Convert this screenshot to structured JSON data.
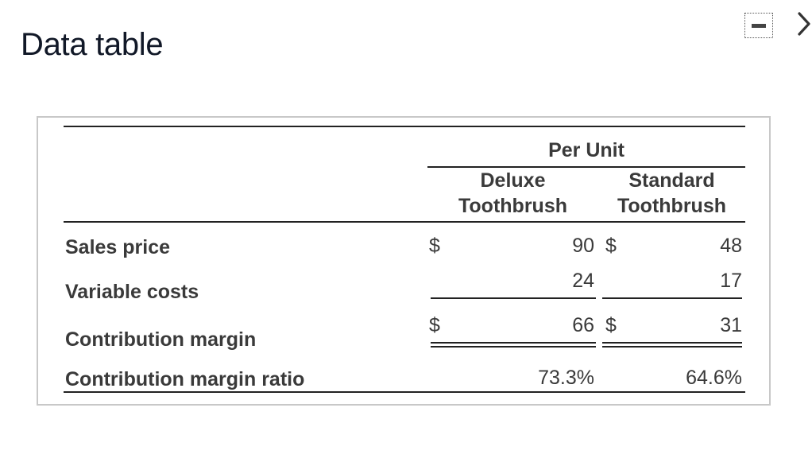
{
  "header": {
    "title": "Data table"
  },
  "table": {
    "group_header": "Per Unit",
    "columns": [
      {
        "line1": "Deluxe",
        "line2": "Toothbrush"
      },
      {
        "line1": "Standard",
        "line2": "Toothbrush"
      }
    ],
    "rows": [
      {
        "label": "Sales price",
        "cur1": "$",
        "val1": "90",
        "cur2": "$",
        "val2": "48"
      },
      {
        "label": "Variable costs",
        "cur1": "",
        "val1": "24",
        "cur2": "",
        "val2": "17"
      },
      {
        "label": "Contribution margin",
        "cur1": "$",
        "val1": "66",
        "cur2": "$",
        "val2": "31"
      },
      {
        "label": "Contribution margin ratio",
        "cur1": "",
        "val1": "73.3%",
        "cur2": "",
        "val2": "64.6%"
      }
    ]
  },
  "icons": {
    "minimize": "minimize-icon",
    "next": "chevron-right-icon"
  }
}
